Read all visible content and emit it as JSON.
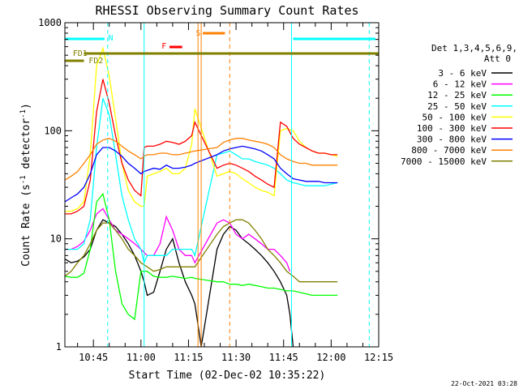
{
  "chart_data": {
    "type": "line",
    "title": "RHESSI Observing Summary Count Rates",
    "xlabel": "Start Time (02-Dec-02 10:35:22)",
    "ylabel_main": "Count Rate (s",
    "ylabel_sup1": "-1",
    "ylabel_mid": " detector",
    "ylabel_sup2": "-1",
    "ylabel_end": ")",
    "yscale": "log",
    "ylim": [
      1,
      1000
    ],
    "xlim_minutes": [
      36,
      135
    ],
    "x_tick_minutes": [
      45,
      60,
      75,
      90,
      105,
      120,
      135
    ],
    "x_tick_labels": [
      "10:45",
      "11:00",
      "11:15",
      "11:30",
      "11:45",
      "12:00",
      "12:15"
    ],
    "y_ticks": [
      1,
      10,
      100,
      1000
    ],
    "y_tick_labels": [
      "1",
      "10",
      "100",
      "1000"
    ],
    "legend_title_1": "Det 1,3,4,5,6,9,",
    "legend_title_2": "Att 0",
    "legend_placement": "right",
    "footer_date": "22-Oct-2021 03:28",
    "series": [
      {
        "name": "3 - 6 keV",
        "color": "#000000",
        "x": [
          36,
          38,
          40,
          42,
          44,
          46,
          48,
          50,
          52,
          54,
          56,
          58,
          60,
          61,
          62,
          64,
          66,
          68,
          70,
          72,
          74,
          76,
          77,
          78,
          79,
          84,
          86,
          88,
          90,
          92,
          94,
          96,
          98,
          100,
          102,
          104,
          106,
          107,
          108
        ],
        "y": [
          6.5,
          6,
          6.2,
          6.8,
          8,
          12,
          15,
          14,
          13,
          11,
          9,
          7,
          5,
          4,
          3,
          3.2,
          5,
          8,
          10,
          6,
          4,
          3,
          2.5,
          1.6,
          1,
          8,
          11,
          13,
          12,
          10,
          9,
          8,
          7,
          6,
          5,
          4,
          3,
          2,
          1
        ]
      },
      {
        "name": "6 - 12 keV",
        "color": "#ff00ff",
        "x": [
          36,
          38,
          40,
          42,
          44,
          46,
          48,
          50,
          52,
          54,
          56,
          58,
          60,
          62,
          64,
          66,
          68,
          70,
          72,
          74,
          76,
          77,
          84,
          86,
          88,
          90,
          92,
          94,
          96,
          98,
          100,
          102,
          104,
          106,
          107
        ],
        "y": [
          8,
          8,
          8.5,
          9.5,
          12,
          17,
          19,
          15,
          12,
          11,
          10,
          9,
          8,
          7,
          7,
          9,
          16,
          12,
          8,
          7,
          7,
          6,
          14,
          15,
          14,
          11,
          10,
          11,
          10,
          9,
          8,
          8,
          7,
          6,
          5
        ]
      },
      {
        "name": "12 - 25 keV",
        "color": "#00ff00",
        "x": [
          36,
          38,
          40,
          42,
          44,
          46,
          48,
          50,
          52,
          54,
          56,
          58,
          60,
          62,
          64,
          66,
          68,
          70,
          72,
          74,
          76,
          77,
          84,
          86,
          88,
          90,
          92,
          94,
          96,
          98,
          100,
          102,
          104,
          106,
          108,
          110,
          112,
          114,
          116,
          118,
          120,
          122
        ],
        "y": [
          4.5,
          4.4,
          4.4,
          4.8,
          8,
          22,
          26,
          15,
          5,
          2.5,
          2,
          1.8,
          5,
          5,
          4.5,
          4.4,
          4.4,
          4.5,
          4.4,
          4.3,
          4.4,
          4.3,
          4,
          4,
          3.8,
          3.8,
          3.7,
          3.8,
          3.7,
          3.6,
          3.5,
          3.5,
          3.4,
          3.3,
          3.3,
          3.2,
          3.1,
          3,
          3,
          3,
          3,
          3
        ]
      },
      {
        "name": "25 - 50 keV",
        "color": "#00ffff",
        "x": [
          36,
          38,
          40,
          42,
          44,
          46,
          48,
          50,
          52,
          54,
          56,
          58,
          60,
          61,
          62,
          64,
          66,
          68,
          70,
          72,
          74,
          76,
          77,
          84,
          86,
          88,
          90,
          92,
          94,
          96,
          98,
          100,
          102,
          104,
          106,
          108,
          110,
          112,
          114,
          116,
          118,
          120,
          122
        ],
        "y": [
          8,
          8,
          8,
          9,
          15,
          70,
          200,
          140,
          60,
          25,
          15,
          10,
          8,
          6,
          7,
          7,
          7,
          7,
          8,
          8,
          8,
          8,
          7,
          60,
          62,
          65,
          60,
          55,
          55,
          52,
          50,
          48,
          45,
          40,
          35,
          33,
          32,
          31,
          31,
          31,
          31,
          32,
          33
        ]
      },
      {
        "name": "50 - 100 keV",
        "color": "#ffff00",
        "x": [
          36,
          38,
          40,
          42,
          44,
          46,
          48,
          50,
          52,
          54,
          56,
          58,
          60,
          61,
          62,
          64,
          66,
          68,
          70,
          72,
          74,
          76,
          77,
          84,
          86,
          88,
          90,
          92,
          94,
          96,
          98,
          100,
          102,
          104,
          106,
          108,
          110,
          112,
          114,
          116,
          118,
          120,
          122
        ],
        "y": [
          18,
          18,
          19,
          22,
          60,
          400,
          580,
          320,
          130,
          50,
          28,
          22,
          20,
          20,
          38,
          40,
          42,
          45,
          40,
          40,
          45,
          75,
          160,
          38,
          40,
          42,
          40,
          36,
          33,
          30,
          28,
          27,
          25,
          100,
          105,
          100,
          80,
          70,
          65,
          62,
          62,
          60,
          58
        ]
      },
      {
        "name": "100 - 300 keV",
        "color": "#ff0000",
        "x": [
          36,
          38,
          40,
          42,
          44,
          46,
          48,
          50,
          52,
          54,
          56,
          58,
          60,
          61,
          62,
          64,
          66,
          68,
          70,
          72,
          74,
          76,
          77,
          84,
          86,
          88,
          90,
          92,
          94,
          96,
          98,
          100,
          102,
          104,
          106,
          108,
          110,
          112,
          114,
          116,
          118,
          120,
          122
        ],
        "y": [
          17,
          17,
          18,
          20,
          35,
          150,
          300,
          180,
          90,
          50,
          35,
          28,
          25,
          70,
          72,
          72,
          75,
          80,
          78,
          75,
          80,
          90,
          120,
          45,
          48,
          50,
          48,
          45,
          42,
          38,
          35,
          32,
          30,
          120,
          110,
          85,
          75,
          70,
          65,
          62,
          62,
          60,
          60
        ]
      },
      {
        "name": "300 - 800 keV",
        "color": "#0000ff",
        "x": [
          36,
          38,
          40,
          42,
          44,
          46,
          48,
          50,
          52,
          54,
          56,
          58,
          60,
          61,
          62,
          64,
          66,
          68,
          70,
          72,
          74,
          76,
          77,
          84,
          86,
          88,
          90,
          92,
          94,
          96,
          98,
          100,
          102,
          104,
          106,
          108,
          110,
          112,
          114,
          116,
          118,
          120,
          122
        ],
        "y": [
          22,
          24,
          26,
          30,
          40,
          60,
          70,
          70,
          65,
          58,
          50,
          45,
          40,
          42,
          43,
          45,
          44,
          48,
          45,
          45,
          46,
          48,
          50,
          60,
          65,
          68,
          70,
          72,
          70,
          68,
          65,
          60,
          55,
          45,
          40,
          36,
          35,
          34,
          34,
          34,
          33,
          33,
          33
        ]
      },
      {
        "name": "800 - 7000 keV",
        "color": "#ff8000",
        "x": [
          36,
          38,
          40,
          42,
          44,
          46,
          48,
          50,
          52,
          54,
          56,
          58,
          60,
          61,
          62,
          64,
          66,
          68,
          70,
          72,
          74,
          76,
          77,
          84,
          86,
          88,
          90,
          92,
          94,
          96,
          98,
          100,
          102,
          104,
          106,
          108,
          110,
          112,
          114,
          116,
          118,
          120,
          122
        ],
        "y": [
          35,
          38,
          42,
          50,
          60,
          75,
          82,
          85,
          80,
          72,
          65,
          60,
          55,
          58,
          60,
          60,
          62,
          62,
          60,
          60,
          62,
          64,
          65,
          70,
          78,
          82,
          85,
          85,
          82,
          80,
          78,
          75,
          70,
          60,
          55,
          52,
          50,
          50,
          48,
          48,
          48,
          48,
          48
        ]
      },
      {
        "name": "7000 - 15000 keV",
        "color": "#808000",
        "x": [
          36,
          38,
          40,
          42,
          44,
          46,
          48,
          50,
          52,
          54,
          56,
          58,
          60,
          62,
          64,
          66,
          68,
          70,
          72,
          74,
          76,
          77,
          84,
          86,
          88,
          90,
          92,
          94,
          96,
          98,
          100,
          102,
          104,
          106,
          108,
          110,
          112,
          114,
          116,
          118,
          120,
          122
        ],
        "y": [
          4.5,
          5,
          6,
          7,
          9,
          12,
          14,
          14,
          12,
          10,
          8,
          7,
          6,
          5.5,
          5,
          5.2,
          5.5,
          5.5,
          5.5,
          5.5,
          5.5,
          5.5,
          11,
          13,
          14,
          15,
          15,
          14,
          12,
          10,
          8,
          7,
          6,
          5,
          4.5,
          4,
          4,
          4,
          4,
          4,
          4,
          4
        ]
      }
    ],
    "annotations": [
      {
        "label": "N",
        "color": "#00ffff"
      },
      {
        "label": "FD1",
        "color": "#808000"
      },
      {
        "label": "FD2",
        "color": "#808000"
      },
      {
        "label": "F",
        "color": "#ff0000"
      },
      {
        "label": "S",
        "color": "#ff8000"
      }
    ]
  }
}
